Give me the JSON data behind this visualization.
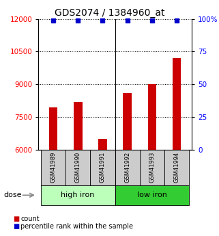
{
  "title": "GDS2074 / 1384960_at",
  "categories": [
    "GSM41989",
    "GSM41990",
    "GSM41991",
    "GSM41992",
    "GSM41993",
    "GSM41994"
  ],
  "bar_values": [
    7950,
    8200,
    6500,
    8600,
    9000,
    10200
  ],
  "percentile_values": [
    100,
    100,
    100,
    100,
    100,
    100
  ],
  "bar_color": "#cc0000",
  "percentile_color": "#0000cc",
  "ylim_left": [
    6000,
    12000
  ],
  "ylim_right": [
    0,
    100
  ],
  "yticks_left": [
    6000,
    7500,
    9000,
    10500,
    12000
  ],
  "yticks_right": [
    0,
    25,
    50,
    75,
    100
  ],
  "ytick_labels_right": [
    "0",
    "25",
    "50",
    "75",
    "100%"
  ],
  "groups": [
    {
      "label": "high iron",
      "indices": [
        0,
        1,
        2
      ],
      "color": "#bbffbb"
    },
    {
      "label": "low iron",
      "indices": [
        3,
        4,
        5
      ],
      "color": "#33cc33"
    }
  ],
  "dose_label": "dose",
  "legend_count": "count",
  "legend_percentile": "percentile rank within the sample",
  "background_color": "#ffffff",
  "title_fontsize": 10,
  "tick_fontsize": 7.5,
  "label_row_color": "#cccccc",
  "bar_width": 0.35
}
